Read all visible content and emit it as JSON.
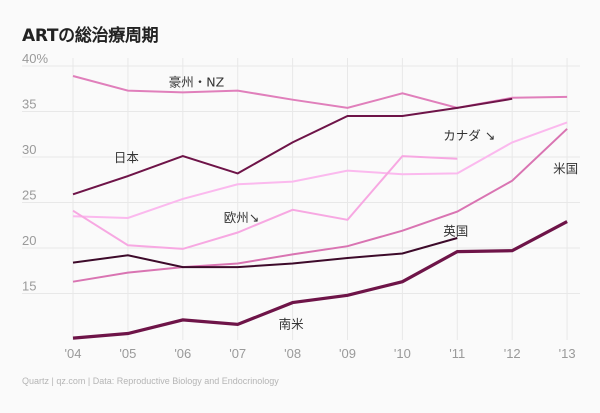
{
  "chart_data": {
    "type": "line",
    "title": "ARTの総治療周期",
    "xlabel": "",
    "ylabel": "",
    "x": [
      "'04",
      "'05",
      "'06",
      "'07",
      "'08",
      "'09",
      "'10",
      "'11",
      "'12",
      "'13"
    ],
    "y_ticks": [
      "40%",
      "35",
      "30",
      "25",
      "20",
      "15"
    ],
    "y_tick_values": [
      40,
      35,
      30,
      25,
      20,
      15
    ],
    "ylim": [
      10,
      40
    ],
    "grid": true,
    "legend": "inline-labels",
    "series": [
      {
        "name": "豪州・NZ",
        "color": "#e07fbb",
        "width": "normal",
        "values": [
          38.9,
          37.3,
          37.1,
          37.3,
          36.3,
          35.4,
          37.0,
          35.4,
          36.5,
          36.6
        ]
      },
      {
        "name": "日本",
        "color": "#6e1448",
        "width": "normal",
        "values": [
          25.9,
          27.9,
          30.1,
          28.2,
          31.6,
          34.5,
          34.5,
          35.4,
          36.4,
          null
        ]
      },
      {
        "name": "カナダ",
        "label_suffix": "↘",
        "color": "#fbb9ee",
        "width": "normal",
        "values": [
          23.5,
          23.3,
          25.4,
          27.0,
          27.3,
          28.5,
          28.1,
          28.2,
          31.6,
          33.8
        ]
      },
      {
        "name": "欧州",
        "label_suffix": "↘",
        "color": "#f7a8e2",
        "width": "normal",
        "values": [
          24.1,
          20.3,
          19.9,
          21.7,
          24.2,
          23.1,
          30.1,
          29.8,
          null,
          null
        ]
      },
      {
        "name": "米国",
        "color": "#d974b2",
        "width": "normal",
        "values": [
          16.3,
          17.3,
          17.9,
          18.3,
          19.3,
          20.2,
          21.9,
          24.0,
          27.4,
          33.1
        ]
      },
      {
        "name": "英国",
        "color": "#3d0a2a",
        "width": "normal",
        "values": [
          18.4,
          19.2,
          17.9,
          17.9,
          18.3,
          18.9,
          19.4,
          21.1,
          null,
          null
        ]
      },
      {
        "name": "南米",
        "color": "#6e1448",
        "width": "thick",
        "values": [
          10.1,
          10.6,
          12.1,
          11.6,
          14.0,
          14.8,
          16.3,
          19.6,
          19.7,
          22.9
        ]
      }
    ],
    "annotations": [
      {
        "text": "豪州・NZ",
        "near": {
          "x": "'06",
          "y": 38.2
        }
      },
      {
        "text": "日本",
        "near": {
          "x": "'05",
          "y": 29.9
        }
      },
      {
        "text": "カナダ ↘",
        "near": {
          "x": "'11",
          "y": 32.3
        }
      },
      {
        "text": "米国",
        "near": {
          "x": "'13",
          "y": 28.7
        }
      },
      {
        "text": "欧州↘",
        "near": {
          "x": "'07",
          "y": 23.3
        }
      },
      {
        "text": "英国",
        "near": {
          "x": "'11",
          "y": 21.8
        }
      },
      {
        "text": "南米",
        "near": {
          "x": "'08",
          "y": 11.6
        }
      }
    ]
  },
  "footer": "Quartz | qz.com | Data: Reproductive Biology and Endocrinology"
}
